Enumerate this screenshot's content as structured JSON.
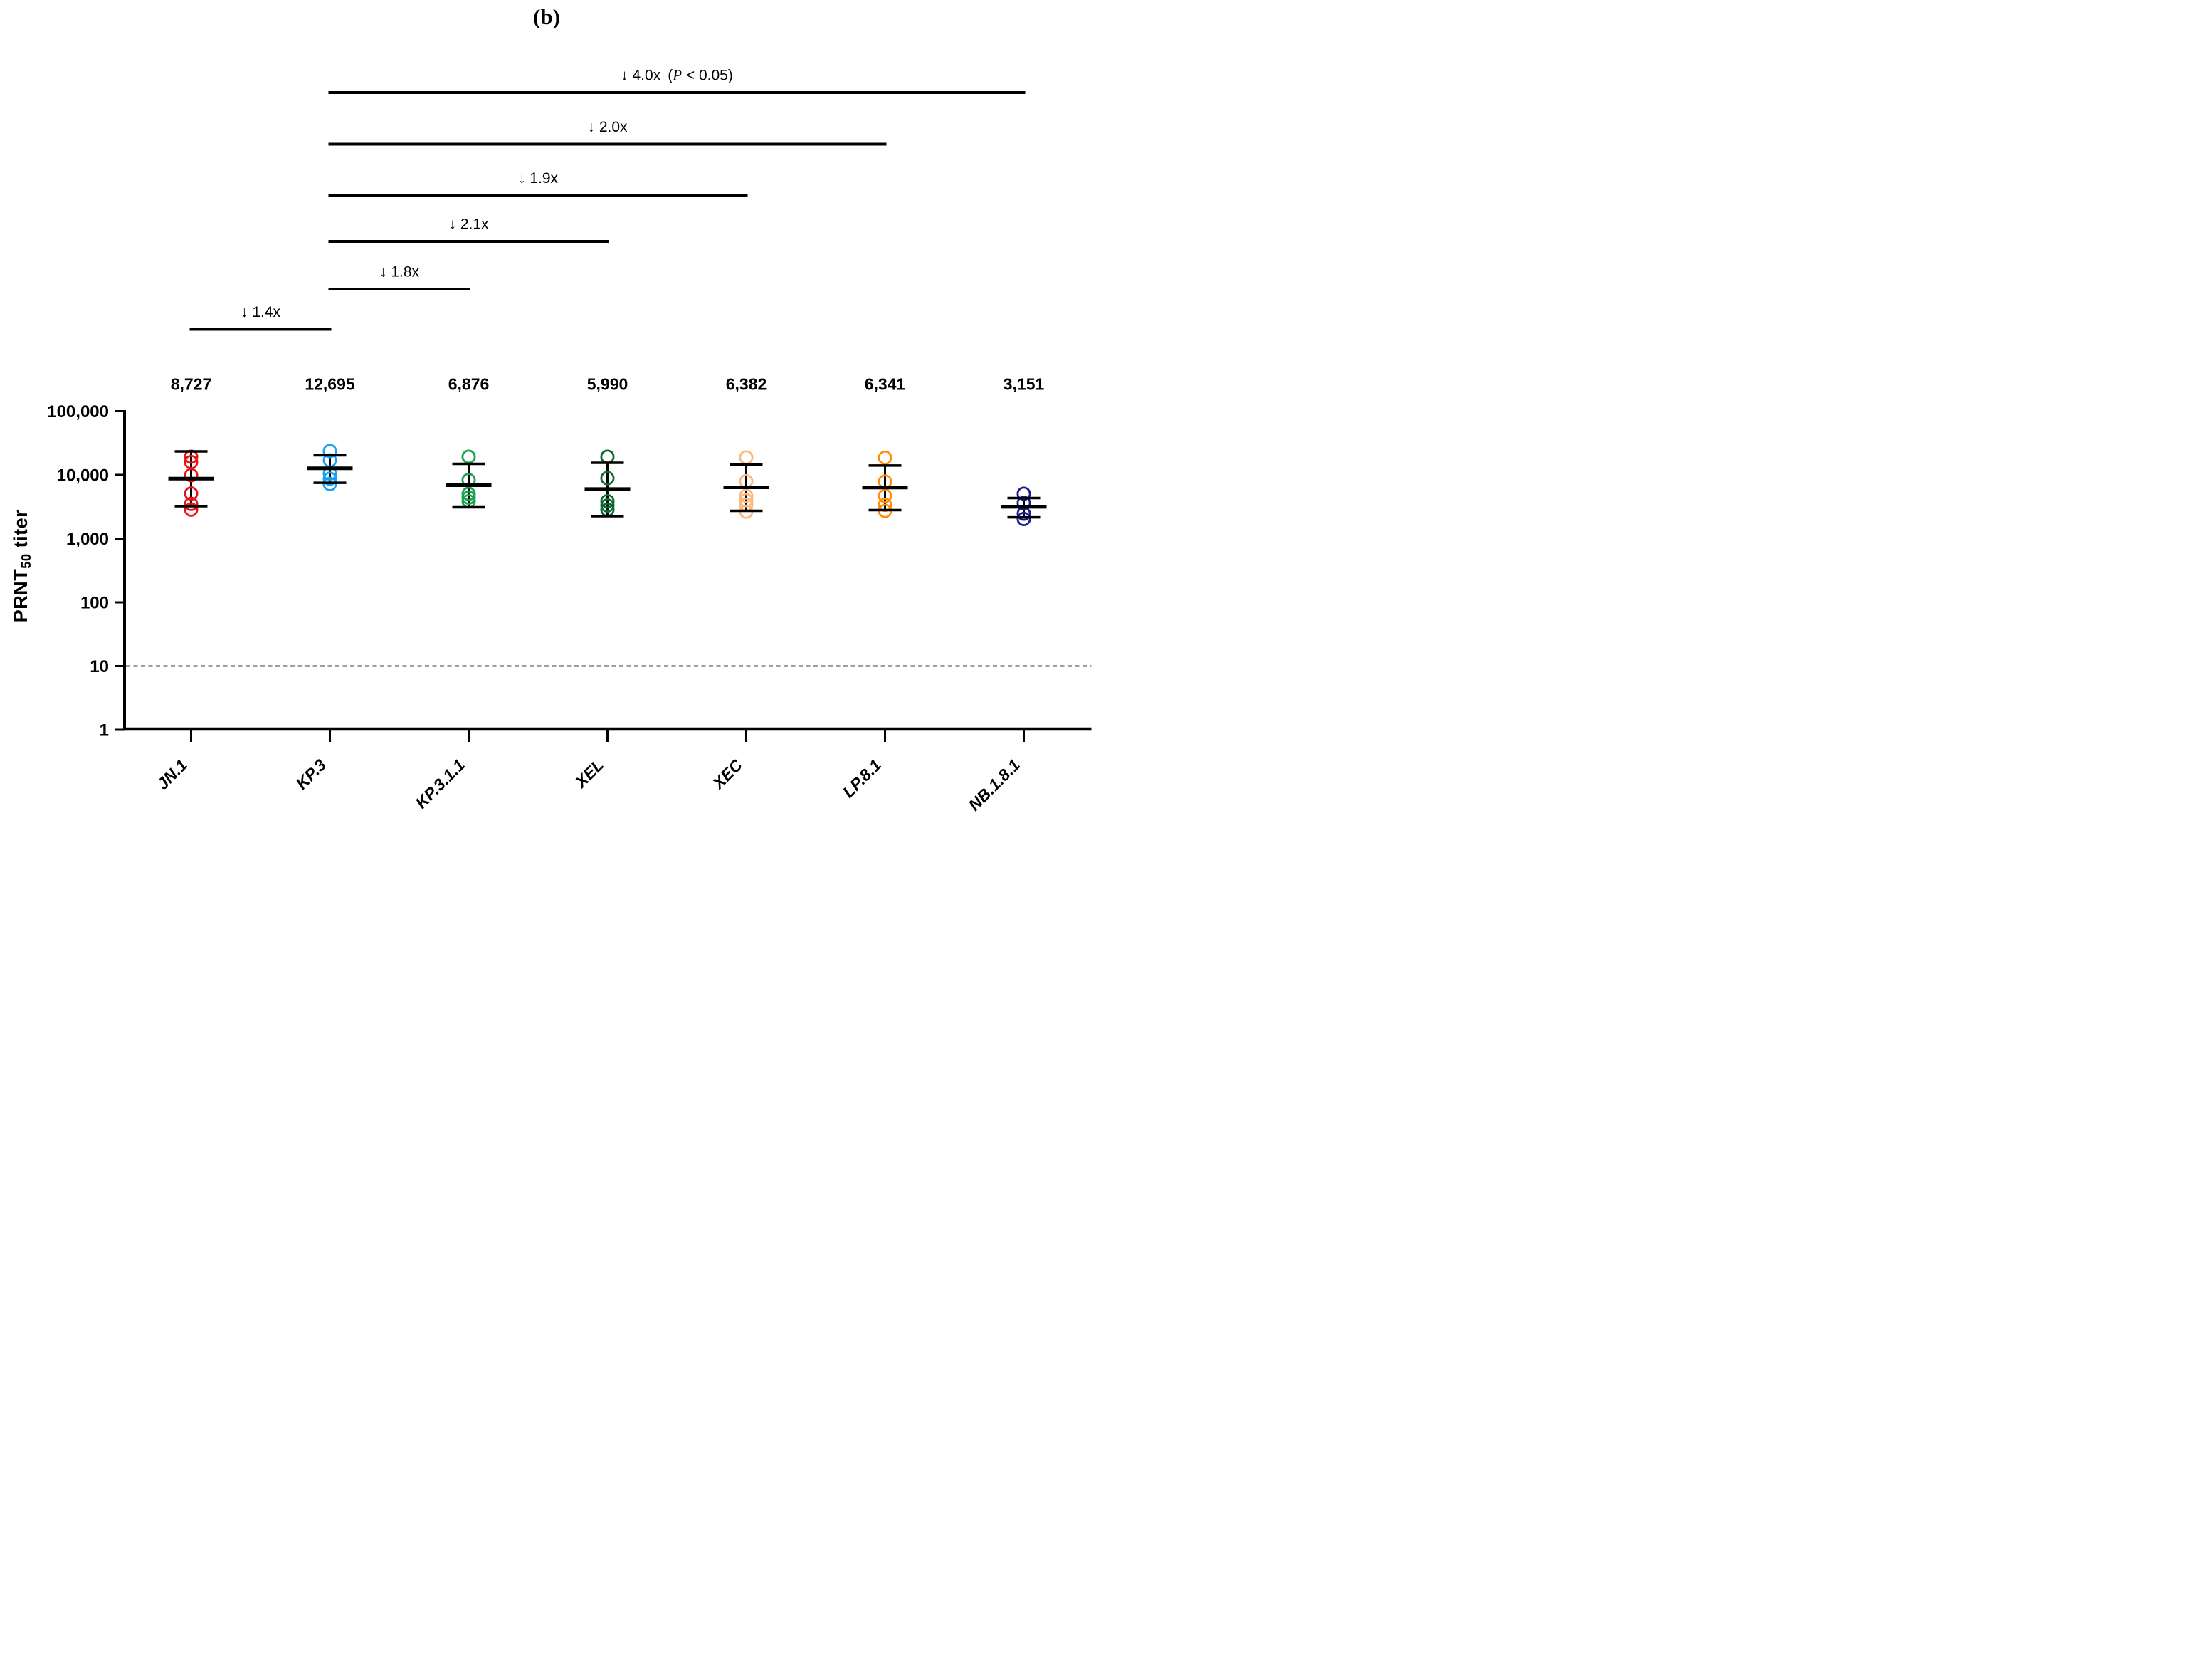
{
  "title": "(b)",
  "y_axis": {
    "label_prefix": "PRNT",
    "label_subscript": "50",
    "label_suffix": " titer"
  },
  "chart_data": {
    "type": "scatter",
    "panel_label": "(b)",
    "ylabel": "PRNT50 titer",
    "yscale": "log10",
    "ylim": [
      1,
      100000
    ],
    "ytick_values": [
      100000,
      10000,
      1000,
      100,
      10,
      1
    ],
    "ytick_labels": [
      "100,000",
      "10,000",
      "1,000",
      "100",
      "10",
      "1"
    ],
    "detection_threshold": 10,
    "grid": false,
    "categories": [
      "JN.1",
      "KP.3",
      "KP.3.1.1",
      "XEL",
      "XEC",
      "LP.8.1",
      "NB.1.8.1"
    ],
    "gmt_labels": [
      "8,727",
      "12,695",
      "6,876",
      "5,990",
      "6,382",
      "6,341",
      "3,151"
    ],
    "arrow_char": "↓",
    "series": [
      {
        "name": "JN.1",
        "color": "#ee1111",
        "gmt": 8727,
        "points": [
          19300,
          15900,
          9900,
          5100,
          3500,
          2850
        ],
        "err_high": 23400,
        "err_low": 3220
      },
      {
        "name": "KP.3",
        "color": "#1ca0f2",
        "gmt": 12695,
        "points": [
          23700,
          16900,
          10500,
          8700,
          7200
        ],
        "err_high": 20300,
        "err_low": 7500
      },
      {
        "name": "KP.3.1.1",
        "color": "#17a24b",
        "gmt": 6876,
        "points": [
          19300,
          8300,
          5050,
          4400,
          3850
        ],
        "err_high": 14900,
        "err_low": 3100
      },
      {
        "name": "XEL",
        "color": "#0c6a31",
        "gmt": 5990,
        "points": [
          19300,
          8900,
          3860,
          3310,
          2840
        ],
        "err_high": 15500,
        "err_low": 2250
      },
      {
        "name": "XEC",
        "color": "#fcb97d",
        "gmt": 6382,
        "points": [
          18800,
          7950,
          4700,
          4000,
          3400,
          2650
        ],
        "err_high": 14500,
        "err_low": 2730
      },
      {
        "name": "LP.8.1",
        "color": "#ff8d0a",
        "gmt": 6341,
        "points": [
          18600,
          7850,
          4680,
          3390,
          2720
        ],
        "err_high": 14000,
        "err_low": 2800
      },
      {
        "name": "NB.1.8.1",
        "color": "#1b1b8e",
        "gmt": 3151,
        "points": [
          5060,
          3630,
          2460,
          2030
        ],
        "err_high": 4330,
        "err_low": 2160
      }
    ],
    "comparisons": [
      {
        "fold": "4.0x",
        "p": "P < 0.05",
        "from": "KP.3",
        "to": "NB.1.8.1"
      },
      {
        "fold": "2.0x",
        "p": "",
        "from": "KP.3",
        "to": "LP.8.1"
      },
      {
        "fold": "1.9x",
        "p": "",
        "from": "KP.3",
        "to": "XEC"
      },
      {
        "fold": "2.1x",
        "p": "",
        "from": "KP.3",
        "to": "XEL"
      },
      {
        "fold": "1.8x",
        "p": "",
        "from": "KP.3",
        "to": "KP.3.1.1"
      },
      {
        "fold": "1.4x",
        "p": "",
        "from": "JN.1",
        "to": "KP.3"
      }
    ]
  }
}
